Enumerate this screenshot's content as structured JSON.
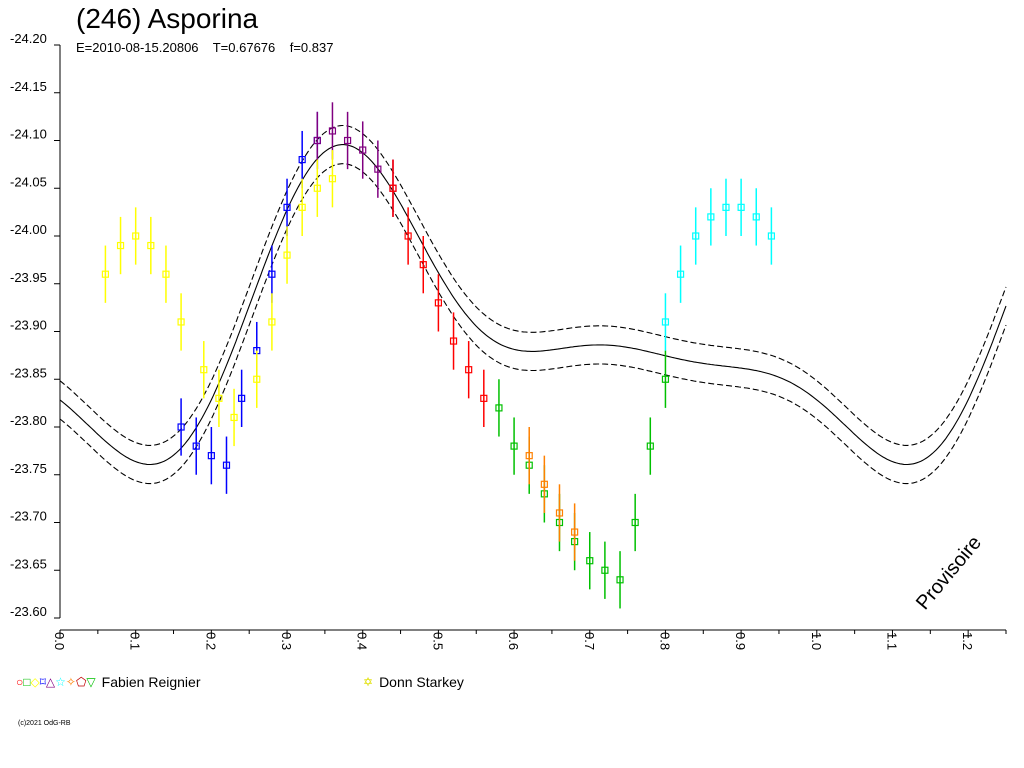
{
  "chart_data": {
    "type": "scatter",
    "title": "(246) Asporina",
    "subtitle": "E=2010-08-15.20806    T=0.67676    f=0.837",
    "xlabel": "",
    "ylabel": "",
    "xlim": [
      0.0,
      1.25
    ],
    "ylim": [
      -24.2,
      -23.6
    ],
    "y_inverted": true,
    "x_ticks": [
      "0.0",
      "0.1",
      "0.2",
      "0.3",
      "0.4",
      "0.5",
      "0.6",
      "0.7",
      "0.8",
      "0.9",
      "1.0",
      "1.1",
      "1.2"
    ],
    "y_ticks": [
      "-24.20",
      "-24.15",
      "-24.10",
      "-24.05",
      "-24.00",
      "-23.95",
      "-23.90",
      "-23.85",
      "-23.80",
      "-23.75",
      "-23.70",
      "-23.65",
      "-23.60"
    ],
    "grid": false,
    "legend_position": "bottom",
    "series": [
      {
        "name": "Fabien Reignier",
        "color": "#0000ff",
        "x": [
          0.16,
          0.18,
          0.2,
          0.22
        ],
        "y": [
          -23.8,
          -23.78,
          -23.77,
          -23.76
        ]
      },
      {
        "name": "Fabien Reignier",
        "color": "#ffff00",
        "x": [
          0.06,
          0.08,
          0.1,
          0.12,
          0.14,
          0.16,
          0.19,
          0.21,
          0.23
        ],
        "y": [
          -23.96,
          -23.99,
          -24.0,
          -23.99,
          -23.96,
          -23.91,
          -23.86,
          -23.83,
          -23.81
        ]
      },
      {
        "name": "Fabien Reignier",
        "color": "#0000ff",
        "x": [
          0.24,
          0.26,
          0.28,
          0.3,
          0.32,
          0.34
        ],
        "y": [
          -23.83,
          -23.88,
          -23.96,
          -24.03,
          -24.08,
          -24.1
        ]
      },
      {
        "name": "Fabien Reignier",
        "color": "#800080",
        "x": [
          0.34,
          0.36,
          0.38,
          0.4,
          0.42,
          0.44
        ],
        "y": [
          -24.1,
          -24.11,
          -24.1,
          -24.09,
          -24.07,
          -24.05
        ]
      },
      {
        "name": "Fabien Reignier",
        "color": "#ff0000",
        "x": [
          0.44,
          0.46,
          0.48,
          0.5,
          0.52,
          0.54,
          0.56
        ],
        "y": [
          -24.05,
          -24.0,
          -23.97,
          -23.93,
          -23.89,
          -23.86,
          -23.83
        ]
      },
      {
        "name": "Fabien Reignier",
        "color": "#00c000",
        "x": [
          0.58,
          0.6,
          0.62,
          0.64,
          0.66,
          0.68,
          0.7,
          0.72,
          0.74,
          0.76,
          0.78,
          0.8
        ],
        "y": [
          -23.82,
          -23.78,
          -23.76,
          -23.73,
          -23.7,
          -23.68,
          -23.66,
          -23.65,
          -23.64,
          -23.7,
          -23.78,
          -23.85
        ]
      },
      {
        "name": "Fabien Reignier",
        "color": "#ff8000",
        "x": [
          0.62,
          0.64,
          0.66,
          0.68
        ],
        "y": [
          -23.77,
          -23.74,
          -23.71,
          -23.69
        ]
      },
      {
        "name": "Fabien Reignier",
        "color": "#00ffff",
        "x": [
          0.8,
          0.82,
          0.84,
          0.86,
          0.88,
          0.9,
          0.92,
          0.94
        ],
        "y": [
          -23.91,
          -23.96,
          -24.0,
          -24.02,
          -24.03,
          -24.03,
          -24.02,
          -24.0
        ]
      },
      {
        "name": "Donn Starkey",
        "color": "#ffff00",
        "x": [
          0.26,
          0.28,
          0.3,
          0.32,
          0.34,
          0.36
        ],
        "y": [
          -23.85,
          -23.91,
          -23.98,
          -24.03,
          -24.05,
          -24.06
        ]
      }
    ],
    "annotation": "Provisoire",
    "copyright": "(c)2021 OdG-RB"
  },
  "legend": {
    "group1_symbols": "○□◇⌑△☆✧⬠▽",
    "group1_label": "Fabien Reignier",
    "group2_symbol": "✡",
    "group2_label": "Donn Starkey"
  },
  "colors": {
    "circle": "#ff0000",
    "square": "#00c000",
    "diamond": "#ffff00",
    "cross": "#0000ff",
    "triangle": "#800080",
    "star": "#00ffff",
    "sparkle": "#ff8000",
    "pentagon": "#c00000",
    "tri_down": "#00c000"
  }
}
